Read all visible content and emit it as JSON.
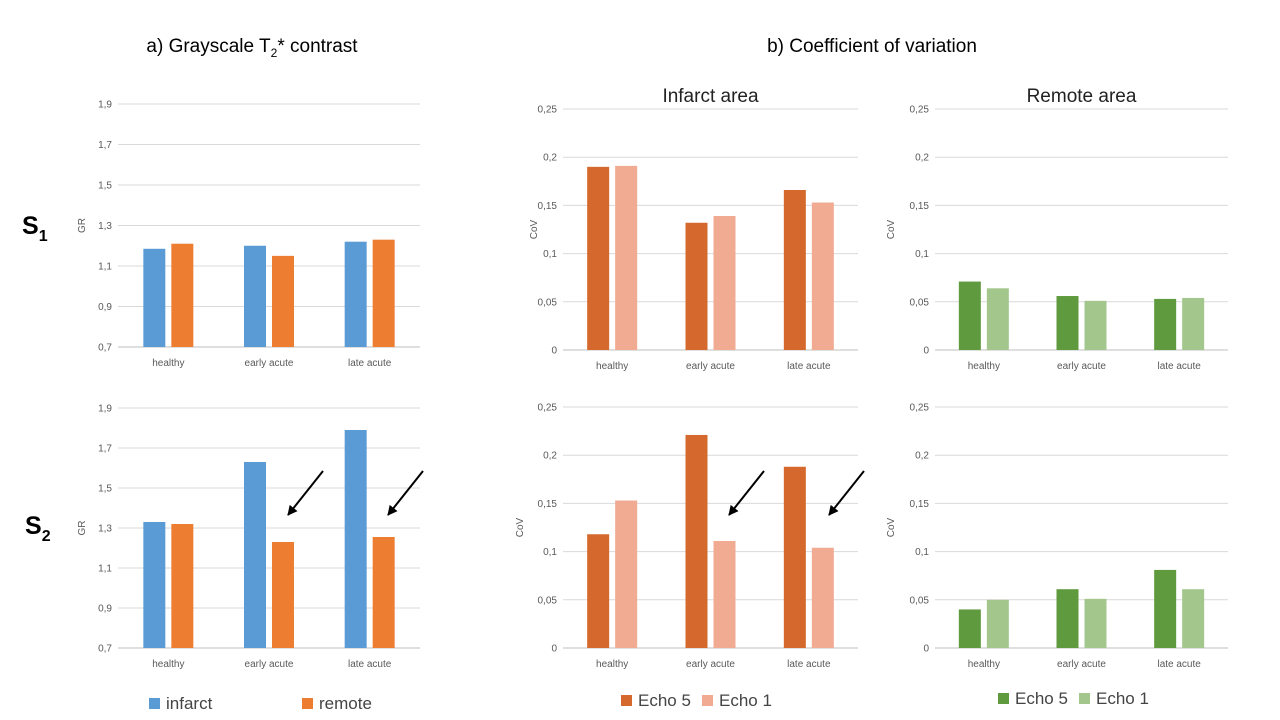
{
  "titles": {
    "a_prefix": "a) Grayscale T",
    "a_sub": "2",
    "a_suffix": "* contrast",
    "b": "b) Coefficient of variation"
  },
  "rows": [
    {
      "main": "S",
      "sub": "1"
    },
    {
      "main": "S",
      "sub": "2"
    }
  ],
  "legends": {
    "gr": [
      {
        "label": "infarct",
        "color": "#5b9bd5"
      },
      {
        "label": "remote",
        "color": "#ed7d31"
      }
    ],
    "infarct": [
      {
        "label": "Echo 5",
        "color": "#d5692d"
      },
      {
        "label": "Echo 1",
        "color": "#f0ab92"
      }
    ],
    "remote": [
      {
        "label": "Echo 5",
        "color": "#5f9a3f"
      },
      {
        "label": "Echo 1",
        "color": "#a3c68c"
      }
    ]
  },
  "chart_data": [
    {
      "type": "bar",
      "title": "",
      "ylabel": "GR",
      "categories": [
        "healthy",
        "early acute",
        "late acute"
      ],
      "ylim": [
        0.7,
        1.9
      ],
      "yticks": [
        "0,7",
        "0,9",
        "1,1",
        "1,3",
        "1,5",
        "1,7",
        "1,9"
      ],
      "series": [
        {
          "name": "infarct",
          "color": "#5b9bd5",
          "values": [
            1.185,
            1.2,
            1.22
          ]
        },
        {
          "name": "remote",
          "color": "#ed7d31",
          "values": [
            1.21,
            1.15,
            1.23
          ]
        }
      ]
    },
    {
      "type": "bar",
      "title": "Infarct area",
      "ylabel": "CoV",
      "categories": [
        "healthy",
        "early acute",
        "late acute"
      ],
      "ylim": [
        0,
        0.25
      ],
      "yticks": [
        "0",
        "0,05",
        "0,1",
        "0,15",
        "0,2",
        "0,25"
      ],
      "series": [
        {
          "name": "Echo 5",
          "color": "#d5692d",
          "values": [
            0.19,
            0.132,
            0.166
          ]
        },
        {
          "name": "Echo 1",
          "color": "#f0ab92",
          "values": [
            0.191,
            0.139,
            0.153
          ]
        }
      ]
    },
    {
      "type": "bar",
      "title": "Remote area",
      "ylabel": "CoV",
      "categories": [
        "healthy",
        "early acute",
        "late acute"
      ],
      "ylim": [
        0,
        0.25
      ],
      "yticks": [
        "0",
        "0,05",
        "0,1",
        "0,15",
        "0,2",
        "0,25"
      ],
      "series": [
        {
          "name": "Echo 5",
          "color": "#5f9a3f",
          "values": [
            0.071,
            0.056,
            0.053
          ]
        },
        {
          "name": "Echo 1",
          "color": "#a3c68c",
          "values": [
            0.064,
            0.051,
            0.054
          ]
        }
      ]
    },
    {
      "type": "bar",
      "title": "",
      "ylabel": "GR",
      "categories": [
        "healthy",
        "early acute",
        "late acute"
      ],
      "ylim": [
        0.7,
        1.9
      ],
      "yticks": [
        "0,7",
        "0,9",
        "1,1",
        "1,3",
        "1,5",
        "1,7",
        "1,9"
      ],
      "series": [
        {
          "name": "infarct",
          "color": "#5b9bd5",
          "values": [
            1.33,
            1.63,
            1.79
          ]
        },
        {
          "name": "remote",
          "color": "#ed7d31",
          "values": [
            1.32,
            1.23,
            1.255
          ]
        }
      ]
    },
    {
      "type": "bar",
      "title": "",
      "ylabel": "CoV",
      "categories": [
        "healthy",
        "early acute",
        "late acute"
      ],
      "ylim": [
        0,
        0.25
      ],
      "yticks": [
        "0",
        "0,05",
        "0,1",
        "0,15",
        "0,2",
        "0,25"
      ],
      "series": [
        {
          "name": "Echo 5",
          "color": "#d5692d",
          "values": [
            0.118,
            0.221,
            0.188
          ]
        },
        {
          "name": "Echo 1",
          "color": "#f0ab92",
          "values": [
            0.153,
            0.111,
            0.104
          ]
        }
      ]
    },
    {
      "type": "bar",
      "title": "",
      "ylabel": "CoV",
      "categories": [
        "healthy",
        "early acute",
        "late acute"
      ],
      "ylim": [
        0,
        0.25
      ],
      "yticks": [
        "0",
        "0,05",
        "0,1",
        "0,15",
        "0,2",
        "0,25"
      ],
      "series": [
        {
          "name": "Echo 5",
          "color": "#5f9a3f",
          "values": [
            0.04,
            0.061,
            0.081
          ]
        },
        {
          "name": "Echo 1",
          "color": "#a3c68c",
          "values": [
            0.05,
            0.051,
            0.061
          ]
        }
      ]
    }
  ]
}
